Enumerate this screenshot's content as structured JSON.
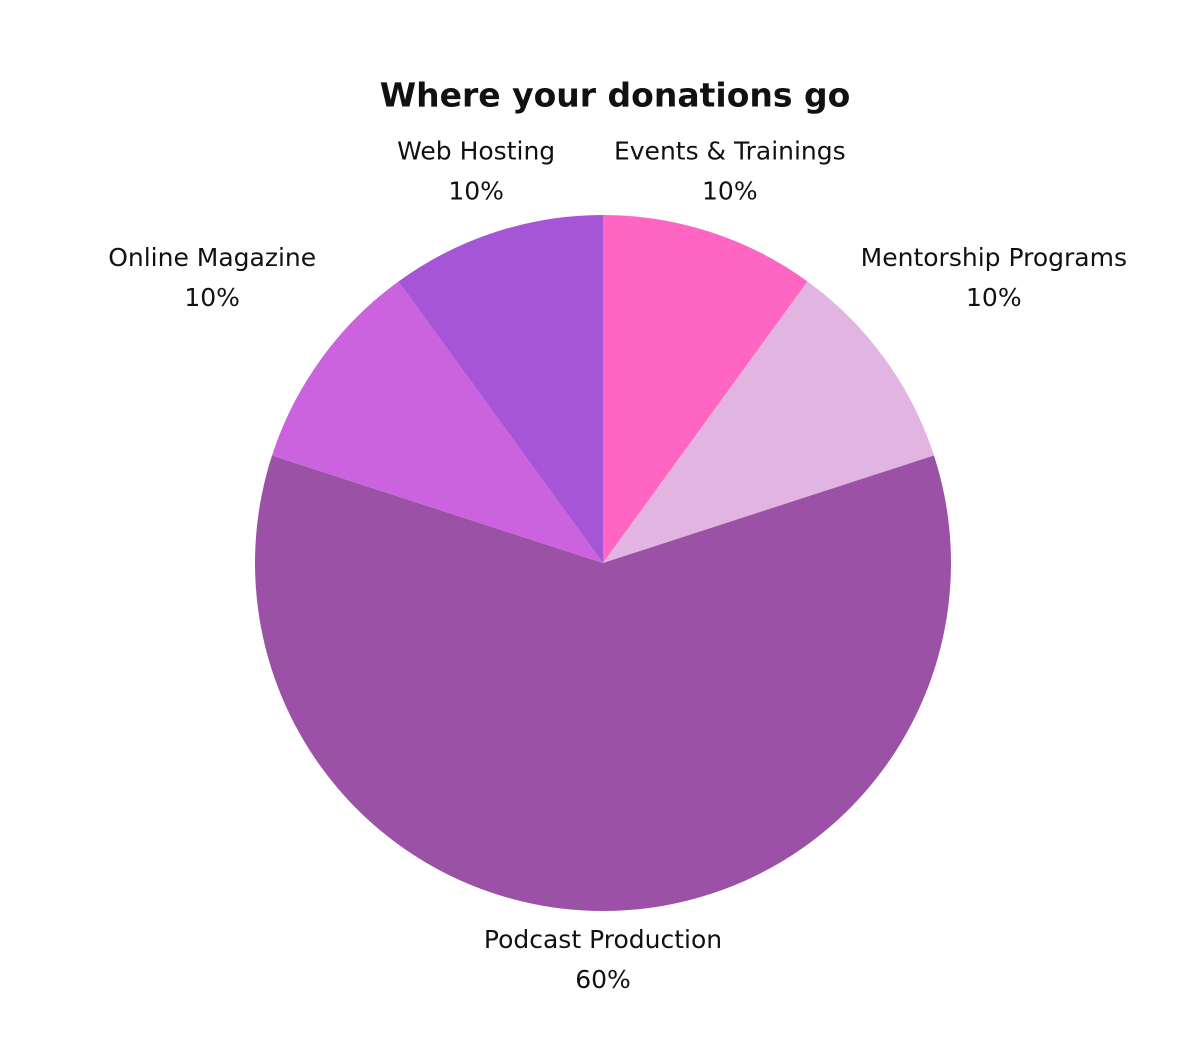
{
  "chart_data": {
    "type": "pie",
    "title": "Where your donations go",
    "categories": [
      "Events & Trainings",
      "Mentorship Programs",
      "Podcast Production",
      "Online Magazine",
      "Web Hosting"
    ],
    "values": [
      10,
      10,
      60,
      10,
      10
    ],
    "value_labels": [
      "10%",
      "10%",
      "60%",
      "10%",
      "10%"
    ],
    "colors": [
      "#ff66c4",
      "#e1b4e1",
      "#9b52a6",
      "#cb63df",
      "#a555d5"
    ]
  }
}
